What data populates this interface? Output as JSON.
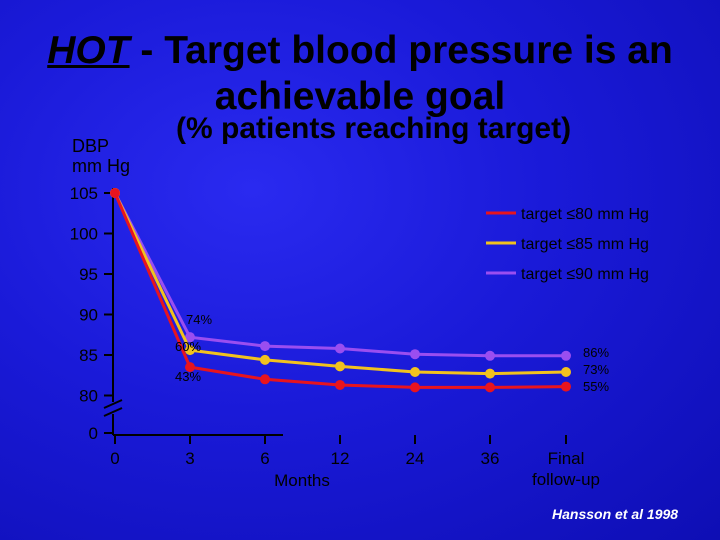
{
  "title": {
    "prefix": "HOT",
    "rest_line1": " - Target blood pressure is an",
    "line2": "achievable goal"
  },
  "subtitle": "(% patients reaching target)",
  "credit": "Hansson et al 1998",
  "chart_data": {
    "type": "line",
    "ylabel_line1": "DBP",
    "ylabel_line2": "mm Hg",
    "xlabel": "Months",
    "x_ticks": [
      "0",
      "3",
      "6",
      "12",
      "24",
      "36",
      "Final follow-up"
    ],
    "y_ticks": [
      "105",
      "100",
      "95",
      "90",
      "85",
      "80",
      "0"
    ],
    "y_axis_break": true,
    "legend_position": "top-right",
    "series": [
      {
        "name": "target ≤80 mm Hg",
        "color": "#e8141e",
        "values": [
          105,
          83.5,
          82,
          81.3,
          81,
          81,
          81.1
        ]
      },
      {
        "name": "target ≤85 mm Hg",
        "color": "#f2c21e",
        "values": [
          105,
          85.6,
          84.4,
          83.6,
          82.9,
          82.7,
          82.9
        ]
      },
      {
        "name": "target ≤90 mm Hg",
        "color": "#9a4ef0",
        "values": [
          105,
          87.2,
          86.1,
          85.8,
          85.1,
          84.9,
          84.9
        ]
      }
    ],
    "annotations": {
      "at_3_months": [
        "74%",
        "60%",
        "43%"
      ],
      "final": [
        "86%",
        "73%",
        "55%"
      ]
    }
  }
}
